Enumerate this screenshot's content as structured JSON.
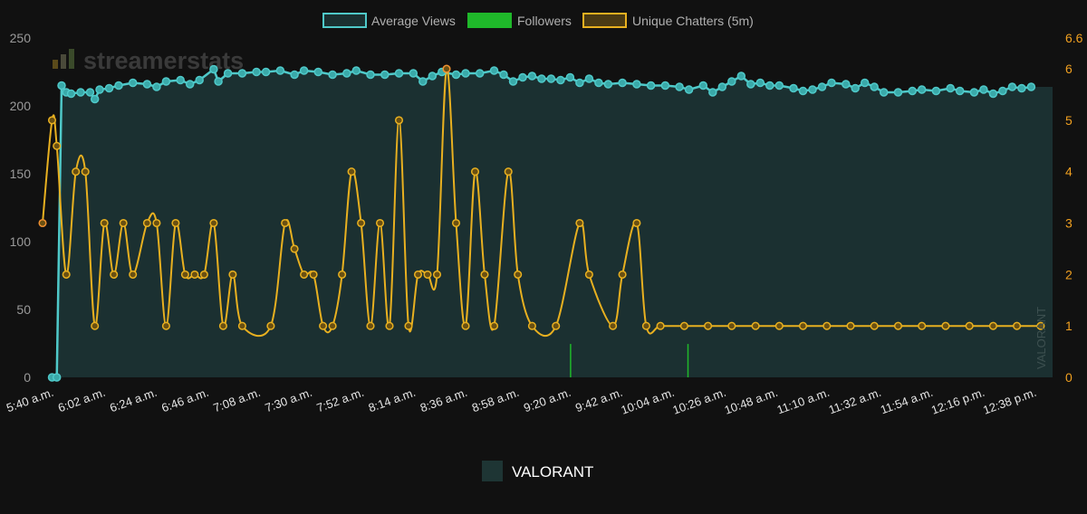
{
  "watermark": "streamerstats",
  "category_label": "VALORANT",
  "colors": {
    "background": "#111111",
    "average_views": "#4fc9c9",
    "average_views_fill": "#1b3031",
    "followers": "#1fb82a",
    "unique_chatters": "#e8b020",
    "unique_chatters_highlight": "#f09030",
    "category_box": "#1e3534"
  },
  "chart_data": {
    "type": "line",
    "legend": [
      "Average Views",
      "Followers",
      "Unique Chatters (5m)"
    ],
    "legend_position": "top-center",
    "x_start_minutes": 340,
    "x_end_minutes": 765,
    "x_ticks": [
      "5:40 a.m.",
      "6:02 a.m.",
      "6:24 a.m.",
      "6:46 a.m.",
      "7:08 a.m.",
      "7:30 a.m.",
      "7:52 a.m.",
      "8:14 a.m.",
      "8:36 a.m.",
      "8:58 a.m.",
      "9:20 a.m.",
      "9:42 a.m.",
      "10:04 a.m.",
      "10:26 a.m.",
      "10:48 a.m.",
      "11:10 a.m.",
      "11:32 a.m.",
      "11:54 a.m.",
      "12:16 p.m.",
      "12:38 p.m."
    ],
    "y_left_ticks": [
      "250",
      "200",
      "150",
      "100",
      "50",
      "0"
    ],
    "y_right_ticks": [
      "6.6",
      "6",
      "5",
      "4",
      "3",
      "2",
      "1",
      "0"
    ],
    "ylim_left": [
      0,
      250
    ],
    "ylim_right": [
      0,
      6.6
    ],
    "grid": false,
    "series": [
      {
        "name": "Average Views",
        "axis": "left",
        "style": "area",
        "points": [
          [
            344,
            0
          ],
          [
            346,
            0
          ],
          [
            348,
            215
          ],
          [
            350,
            210
          ],
          [
            352,
            209
          ],
          [
            356,
            210
          ],
          [
            360,
            210
          ],
          [
            362,
            205
          ],
          [
            364,
            212
          ],
          [
            368,
            213
          ],
          [
            372,
            215
          ],
          [
            378,
            217
          ],
          [
            384,
            216
          ],
          [
            388,
            214
          ],
          [
            392,
            218
          ],
          [
            398,
            219
          ],
          [
            402,
            216
          ],
          [
            406,
            219
          ],
          [
            412,
            227
          ],
          [
            414,
            218
          ],
          [
            418,
            224
          ],
          [
            424,
            224
          ],
          [
            430,
            225
          ],
          [
            434,
            225
          ],
          [
            440,
            226
          ],
          [
            446,
            223
          ],
          [
            450,
            226
          ],
          [
            456,
            225
          ],
          [
            462,
            223
          ],
          [
            468,
            224
          ],
          [
            472,
            226
          ],
          [
            478,
            223
          ],
          [
            484,
            223
          ],
          [
            490,
            224
          ],
          [
            496,
            224
          ],
          [
            500,
            218
          ],
          [
            504,
            222
          ],
          [
            508,
            225
          ],
          [
            514,
            223
          ],
          [
            518,
            224
          ],
          [
            524,
            224
          ],
          [
            530,
            226
          ],
          [
            534,
            223
          ],
          [
            538,
            218
          ],
          [
            542,
            221
          ],
          [
            546,
            222
          ],
          [
            550,
            220
          ],
          [
            554,
            220
          ],
          [
            558,
            219
          ],
          [
            562,
            221
          ],
          [
            566,
            217
          ],
          [
            570,
            220
          ],
          [
            574,
            217
          ],
          [
            578,
            216
          ],
          [
            584,
            217
          ],
          [
            590,
            216
          ],
          [
            596,
            215
          ],
          [
            602,
            215
          ],
          [
            608,
            214
          ],
          [
            612,
            212
          ],
          [
            618,
            215
          ],
          [
            622,
            210
          ],
          [
            626,
            214
          ],
          [
            630,
            218
          ],
          [
            634,
            222
          ],
          [
            638,
            216
          ],
          [
            642,
            217
          ],
          [
            646,
            215
          ],
          [
            650,
            215
          ],
          [
            656,
            213
          ],
          [
            660,
            211
          ],
          [
            664,
            212
          ],
          [
            668,
            214
          ],
          [
            672,
            217
          ],
          [
            678,
            216
          ],
          [
            682,
            213
          ],
          [
            686,
            217
          ],
          [
            690,
            214
          ],
          [
            694,
            210
          ],
          [
            700,
            210
          ],
          [
            706,
            211
          ],
          [
            710,
            212
          ],
          [
            716,
            211
          ],
          [
            722,
            213
          ],
          [
            726,
            211
          ],
          [
            732,
            210
          ],
          [
            736,
            212
          ],
          [
            740,
            209
          ],
          [
            744,
            211
          ],
          [
            748,
            214
          ],
          [
            752,
            213
          ],
          [
            756,
            214
          ]
        ]
      },
      {
        "name": "Followers",
        "axis": "right",
        "style": "spikes",
        "points": [
          [
            9.98,
            0.65
          ],
          [
            12.25,
            0.65
          ]
        ]
      },
      {
        "name": "Unique Chatters (5m)",
        "axis": "right",
        "style": "line",
        "points": [
          [
            340,
            3
          ],
          [
            344,
            5
          ],
          [
            346,
            4.5
          ],
          [
            350,
            2
          ],
          [
            354,
            4
          ],
          [
            358,
            4
          ],
          [
            362,
            1
          ],
          [
            366,
            3
          ],
          [
            370,
            2
          ],
          [
            374,
            3
          ],
          [
            378,
            2
          ],
          [
            384,
            3
          ],
          [
            388,
            3
          ],
          [
            392,
            1
          ],
          [
            396,
            3
          ],
          [
            400,
            2
          ],
          [
            404,
            2
          ],
          [
            408,
            2
          ],
          [
            412,
            3
          ],
          [
            416,
            1
          ],
          [
            420,
            2
          ],
          [
            424,
            1
          ],
          [
            436,
            1
          ],
          [
            442,
            3
          ],
          [
            446,
            2.5
          ],
          [
            450,
            2
          ],
          [
            454,
            2
          ],
          [
            458,
            1
          ],
          [
            462,
            1
          ],
          [
            466,
            2
          ],
          [
            470,
            4
          ],
          [
            474,
            3
          ],
          [
            478,
            1
          ],
          [
            482,
            3
          ],
          [
            486,
            1
          ],
          [
            490,
            5
          ],
          [
            494,
            1
          ],
          [
            498,
            2
          ],
          [
            502,
            2
          ],
          [
            506,
            2
          ],
          [
            510,
            6
          ],
          [
            514,
            3
          ],
          [
            518,
            1
          ],
          [
            522,
            4
          ],
          [
            526,
            2
          ],
          [
            530,
            1
          ],
          [
            536,
            4
          ],
          [
            540,
            2
          ],
          [
            546,
            1
          ],
          [
            556,
            1
          ],
          [
            566,
            3
          ],
          [
            570,
            2
          ],
          [
            580,
            1
          ],
          [
            584,
            2
          ],
          [
            590,
            3
          ],
          [
            594,
            1
          ],
          [
            600,
            1
          ],
          [
            610,
            1
          ],
          [
            620,
            1
          ],
          [
            630,
            1
          ],
          [
            640,
            1
          ],
          [
            650,
            1
          ],
          [
            660,
            1
          ],
          [
            670,
            1
          ],
          [
            680,
            1
          ],
          [
            690,
            1
          ],
          [
            700,
            1
          ],
          [
            710,
            1
          ],
          [
            720,
            1
          ],
          [
            730,
            1
          ],
          [
            740,
            1
          ],
          [
            750,
            1
          ],
          [
            760,
            1
          ]
        ]
      }
    ]
  }
}
